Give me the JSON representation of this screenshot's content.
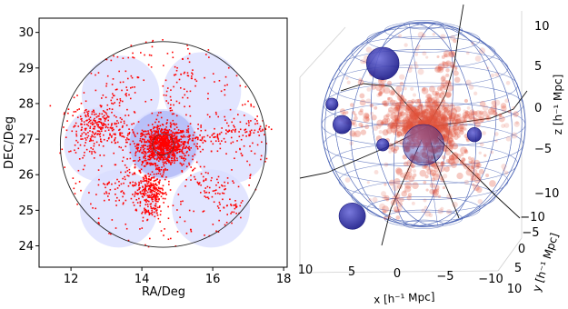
{
  "chart_data": [
    {
      "type": "scatter",
      "xlabel": "RA/Deg",
      "ylabel": "DEC/Deg",
      "xlim": [
        11.1,
        18.1
      ],
      "ylim": [
        23.4,
        30.4
      ],
      "xticks": [
        "12",
        "14",
        "16",
        "18"
      ],
      "yticks": [
        "24",
        "25",
        "26",
        "27",
        "28",
        "29",
        "30"
      ],
      "grid": false,
      "center": [
        14.6,
        26.85
      ],
      "big_circle_radius": 2.9,
      "field_circles": [
        {
          "x": 14.6,
          "y": 26.85,
          "r": 1.0
        },
        {
          "x": 13.4,
          "y": 28.25,
          "r": 1.1
        },
        {
          "x": 15.7,
          "y": 28.35,
          "r": 1.1
        },
        {
          "x": 12.85,
          "y": 26.85,
          "r": 1.05
        },
        {
          "x": 16.5,
          "y": 26.8,
          "r": 1.05
        },
        {
          "x": 13.35,
          "y": 25.05,
          "r": 1.1
        },
        {
          "x": 15.95,
          "y": 25.05,
          "r": 1.1
        }
      ],
      "points_color": "#ff0000",
      "field_color": "#d8dcff",
      "core_color": "#aab2f5"
    },
    {
      "type": "scatter3d",
      "xlabel": "x [h⁻¹ Mpc]",
      "ylabel": "y [h⁻¹ Mpc]",
      "zlabel": "z [h⁻¹ Mpc]",
      "xticks": [
        "10",
        "5",
        "0",
        "−5",
        "−10"
      ],
      "yticks": [
        "−10",
        "−5",
        "0",
        "5",
        "10"
      ],
      "zticks": [
        "10",
        "5",
        "0",
        "−5",
        "−10"
      ],
      "sphere_radius": 10,
      "halos": [
        {
          "x": -4,
          "y": 0,
          "z": 6,
          "r": 1.6
        },
        {
          "x": -9,
          "y": 0,
          "z": 2,
          "r": 0.6
        },
        {
          "x": -8,
          "y": 0,
          "z": 0,
          "r": 0.9
        },
        {
          "x": 5,
          "y": 0,
          "z": -1,
          "r": 0.7
        },
        {
          "x": -4,
          "y": 0,
          "z": -2,
          "r": 0.6
        },
        {
          "x": 0,
          "y": 0,
          "z": -2,
          "r": 2.0
        },
        {
          "x": -7,
          "y": 0,
          "z": -9,
          "r": 1.3
        }
      ],
      "wire_color": "#4a63b5",
      "point_color": "#e0533c",
      "halo_color": "#2a2aa0"
    }
  ]
}
